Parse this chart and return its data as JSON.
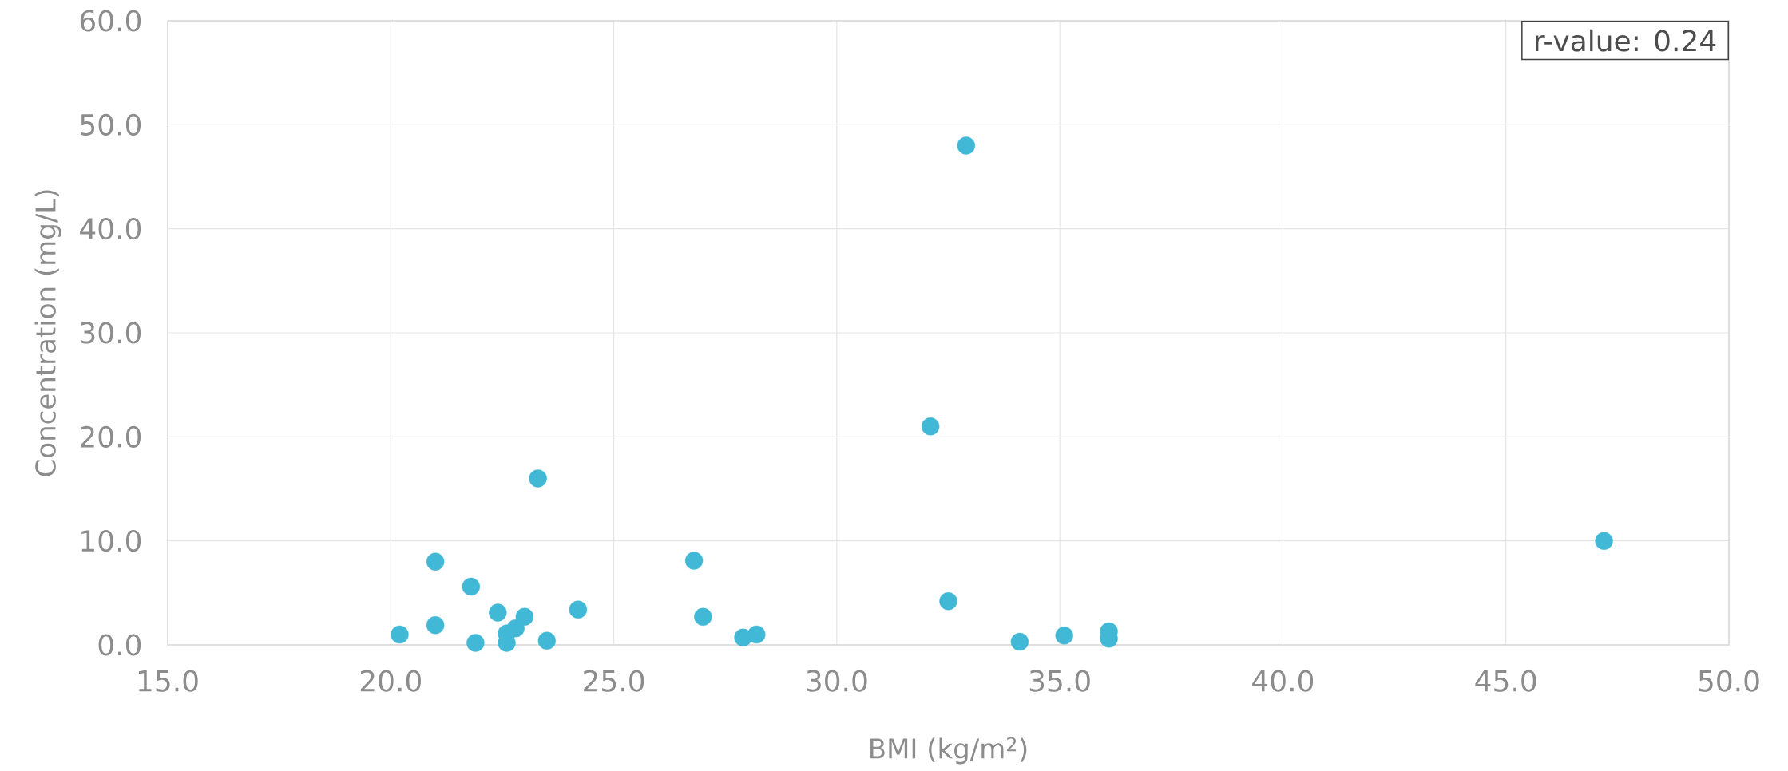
{
  "chart_data": {
    "type": "scatter",
    "xlabel": "BMI (kg/m$^{2}$)",
    "ylabel": "Concentration (mg/L)",
    "annotations": [
      "r-value: 0.24"
    ],
    "x": [
      20.2,
      21.0,
      21.0,
      21.8,
      21.9,
      22.4,
      22.6,
      22.6,
      22.8,
      23.0,
      23.3,
      23.5,
      24.2,
      26.8,
      27.0,
      27.9,
      28.2,
      32.1,
      32.5,
      32.9,
      34.1,
      35.1,
      36.1,
      36.1,
      47.2
    ],
    "series": [
      {
        "color": "#41b8d5",
        "values": [
          1.0,
          8.0,
          1.9,
          5.6,
          0.2,
          3.1,
          1.1,
          0.2,
          1.6,
          2.7,
          16.0,
          0.4,
          3.4,
          8.1,
          2.7,
          0.7,
          1.0,
          21.0,
          4.2,
          48.0,
          0.3,
          0.9,
          1.3,
          0.6,
          10.0
        ]
      }
    ],
    "xlim": [
      15,
      50
    ],
    "xticks": [
      {
        "value": 15,
        "label": "15.0"
      },
      {
        "value": 20,
        "label": "20.0"
      },
      {
        "value": 25,
        "label": "25.0"
      },
      {
        "value": 30,
        "label": "30.0"
      },
      {
        "value": 35,
        "label": "35.0"
      },
      {
        "value": 40,
        "label": "40.0"
      },
      {
        "value": 45,
        "label": "45.0"
      },
      {
        "value": 50,
        "label": "50.0"
      }
    ],
    "ylim": [
      0,
      60
    ],
    "yticks": [
      {
        "value": 0,
        "label": "0.0"
      },
      {
        "value": 10,
        "label": "10.0"
      },
      {
        "value": 20,
        "label": "20.0"
      },
      {
        "value": 30,
        "label": "30.0"
      },
      {
        "value": 40,
        "label": "40.0"
      },
      {
        "value": 50,
        "label": "50.0"
      },
      {
        "value": 60,
        "label": "60.0"
      }
    ],
    "grid": true
  }
}
